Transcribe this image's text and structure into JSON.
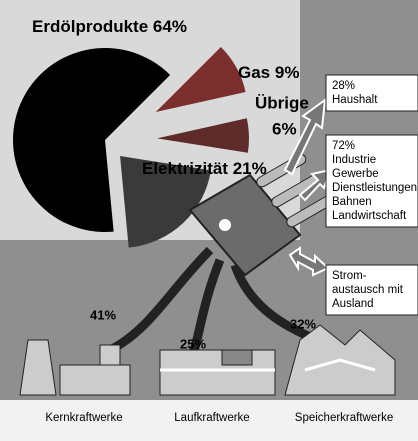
{
  "chart_data": {
    "type": "pie",
    "categories": [
      "Erdölprodukte",
      "Gas",
      "Übrige",
      "Elektrizität"
    ],
    "values": [
      64,
      9,
      6,
      21
    ],
    "value_labels": [
      "64%",
      "9%",
      "6%",
      "21%"
    ],
    "colors": [
      "#000000",
      "#7a2e2e",
      "#5e2a2a",
      "#3a3a3a"
    ]
  },
  "electricity_use": [
    {
      "share": "28%",
      "lines": [
        "Haushalt"
      ]
    },
    {
      "share": "72%",
      "lines": [
        "Industrie",
        "Gewerbe",
        "Dienstleistungen",
        "Bahnen",
        "Landwirtschaft"
      ]
    },
    {
      "lines": [
        "Strom-",
        "austausch mit",
        "Ausland"
      ]
    }
  ],
  "power_plants": [
    {
      "share": "41%",
      "label": "Kernkraftwerke"
    },
    {
      "share": "25%",
      "label": "Laufkraftwerke"
    },
    {
      "share": "32%",
      "label": "Speicherkraftwerke"
    }
  ]
}
